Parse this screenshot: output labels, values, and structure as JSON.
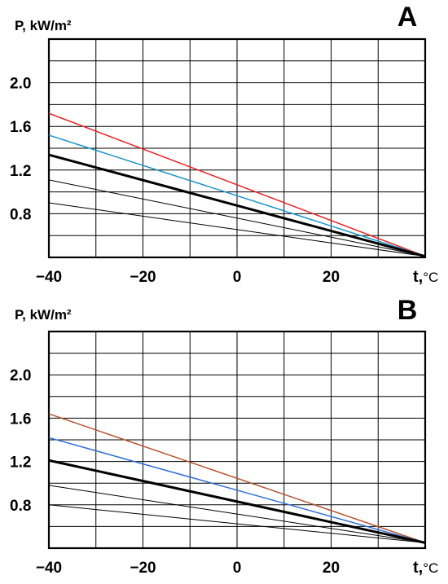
{
  "chart_data": [
    {
      "panel_label": "A",
      "type": "line",
      "ylabel": "P, kW/m²",
      "xlabel": "t,",
      "xunit": "°C",
      "xlim": [
        -40,
        40
      ],
      "ylim": [
        0.4,
        2.4
      ],
      "x_ticks": [
        -40,
        -30,
        -20,
        -10,
        0,
        10,
        20,
        30,
        40
      ],
      "y_ticks": [
        0.4,
        0.6,
        0.8,
        1.0,
        1.2,
        1.4,
        1.6,
        1.8,
        2.0,
        2.2,
        2.4
      ],
      "x_tick_labels": [
        {
          "value": -40,
          "text": "−40"
        },
        {
          "value": -20,
          "text": "−20"
        },
        {
          "value": 0,
          "text": "0"
        },
        {
          "value": 20,
          "text": "20"
        }
      ],
      "y_tick_labels": [
        {
          "value": 0.8,
          "text": "0.8"
        },
        {
          "value": 1.2,
          "text": "1.2"
        },
        {
          "value": 1.6,
          "text": "1.6"
        },
        {
          "value": 2.0,
          "text": "2.0"
        }
      ],
      "grid": true,
      "series": [
        {
          "x": [
            -40,
            40
          ],
          "y": [
            1.72,
            0.41
          ],
          "color": "#e8262a",
          "width": 1.5
        },
        {
          "x": [
            -40,
            40
          ],
          "y": [
            1.52,
            0.41
          ],
          "color": "#1a94c8",
          "width": 1.5
        },
        {
          "x": [
            -40,
            40
          ],
          "y": [
            1.34,
            0.41
          ],
          "color": "#000000",
          "width": 3
        },
        {
          "x": [
            -40,
            40
          ],
          "y": [
            1.11,
            0.41
          ],
          "color": "#000000",
          "width": 1
        },
        {
          "x": [
            -40,
            40
          ],
          "y": [
            0.9,
            0.41
          ],
          "color": "#000000",
          "width": 1
        }
      ]
    },
    {
      "panel_label": "B",
      "type": "line",
      "ylabel": "P, kW/m²",
      "xlabel": "t,",
      "xunit": "°C",
      "xlim": [
        -40,
        40
      ],
      "ylim": [
        0.4,
        2.4
      ],
      "x_ticks": [
        -40,
        -30,
        -20,
        -10,
        0,
        10,
        20,
        30,
        40
      ],
      "y_ticks": [
        0.4,
        0.6,
        0.8,
        1.0,
        1.2,
        1.4,
        1.6,
        1.8,
        2.0,
        2.2,
        2.4
      ],
      "x_tick_labels": [
        {
          "value": -40,
          "text": "−40"
        },
        {
          "value": -20,
          "text": "−20"
        },
        {
          "value": 0,
          "text": "0"
        },
        {
          "value": 20,
          "text": "20"
        }
      ],
      "y_tick_labels": [
        {
          "value": 0.8,
          "text": "0.8"
        },
        {
          "value": 1.2,
          "text": "1.2"
        },
        {
          "value": 1.6,
          "text": "1.6"
        },
        {
          "value": 2.0,
          "text": "2.0"
        }
      ],
      "grid": true,
      "series": [
        {
          "x": [
            -40,
            40
          ],
          "y": [
            1.64,
            0.45
          ],
          "color": "#b5532e",
          "width": 1.5
        },
        {
          "x": [
            -40,
            40
          ],
          "y": [
            1.42,
            0.45
          ],
          "color": "#2f6fd6",
          "width": 1.5
        },
        {
          "x": [
            -40,
            40
          ],
          "y": [
            1.21,
            0.45
          ],
          "color": "#000000",
          "width": 3
        },
        {
          "x": [
            -40,
            40
          ],
          "y": [
            0.98,
            0.45
          ],
          "color": "#000000",
          "width": 1
        },
        {
          "x": [
            -40,
            40
          ],
          "y": [
            0.8,
            0.45
          ],
          "color": "#000000",
          "width": 1
        }
      ]
    }
  ]
}
